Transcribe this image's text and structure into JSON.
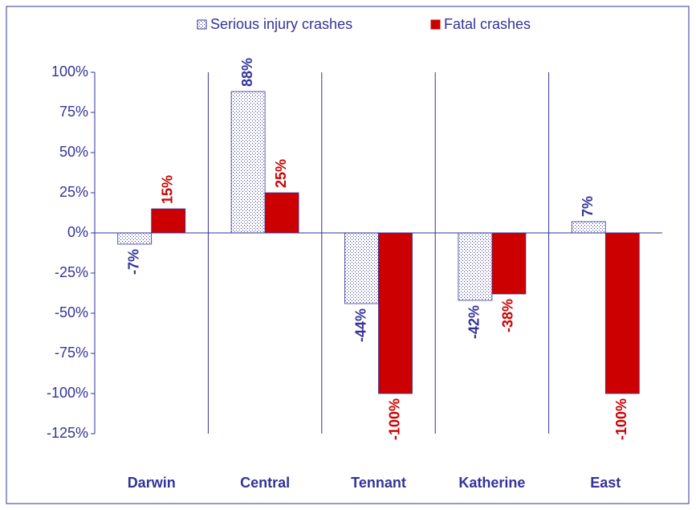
{
  "chart_data": {
    "type": "bar",
    "categories": [
      "Darwin",
      "Central",
      "Tennant",
      "Katherine",
      "East"
    ],
    "series": [
      {
        "name": "Serious injury crashes",
        "color": "#333399",
        "values": [
          -7,
          88,
          -44,
          -42,
          7
        ],
        "value_labels": [
          "-7%",
          "88%",
          "-44%",
          "-42%",
          "7%"
        ]
      },
      {
        "name": "Fatal crashes",
        "color": "#cc0000",
        "values": [
          15,
          25,
          -100,
          -38,
          -100
        ],
        "value_labels": [
          "15%",
          "25%",
          "-100%",
          "-38%",
          "-100%"
        ]
      }
    ],
    "ylim": [
      -125,
      100
    ],
    "yticks": [
      {
        "value": -125,
        "label": "-125%"
      },
      {
        "value": -100,
        "label": "-100%"
      },
      {
        "value": -75,
        "label": "-75%"
      },
      {
        "value": -50,
        "label": "-50%"
      },
      {
        "value": -25,
        "label": "-25%"
      },
      {
        "value": 0,
        "label": "0%"
      },
      {
        "value": 25,
        "label": "25%"
      },
      {
        "value": 50,
        "label": "50%"
      },
      {
        "value": 75,
        "label": "75%"
      },
      {
        "value": 100,
        "label": "100%"
      }
    ],
    "legend": "top"
  }
}
